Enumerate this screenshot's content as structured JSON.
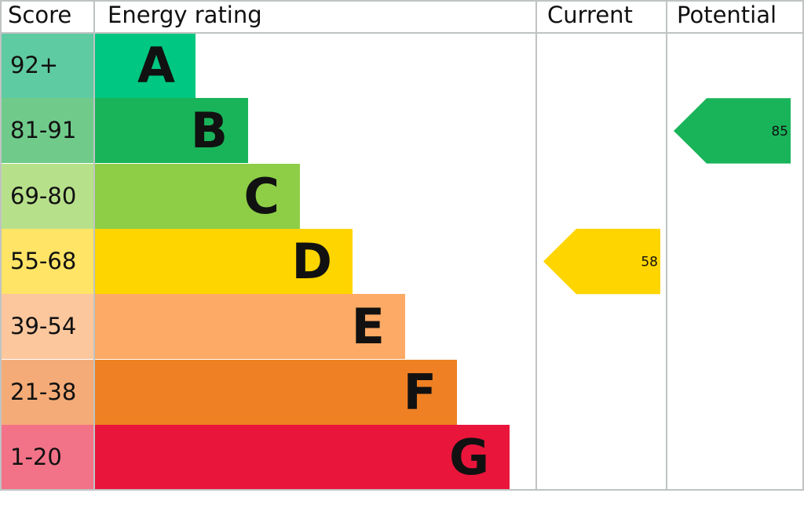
{
  "chart_data": {
    "type": "bar",
    "headers": {
      "score": "Score",
      "rating": "Energy rating",
      "current": "Current",
      "potential": "Potential"
    },
    "bands": [
      {
        "letter": "A",
        "range": "92+",
        "color": "#00c781",
        "score_color": "#5fcba2"
      },
      {
        "letter": "B",
        "range": "81-91",
        "color": "#19b459",
        "score_color": "#70cb8b"
      },
      {
        "letter": "C",
        "range": "69-80",
        "color": "#8dce46",
        "score_color": "#b7e08a"
      },
      {
        "letter": "D",
        "range": "55-68",
        "color": "#ffd500",
        "score_color": "#ffe466"
      },
      {
        "letter": "E",
        "range": "39-54",
        "color": "#fcaa65",
        "score_color": "#fdc79e"
      },
      {
        "letter": "F",
        "range": "21-38",
        "color": "#ef8023",
        "score_color": "#f4ab77"
      },
      {
        "letter": "G",
        "range": "1-20",
        "color": "#e9153b",
        "score_color": "#f27388"
      }
    ],
    "current": {
      "value": 58,
      "band": "D",
      "label": "58"
    },
    "potential": {
      "value": 85,
      "band": "B",
      "label": "85"
    }
  }
}
